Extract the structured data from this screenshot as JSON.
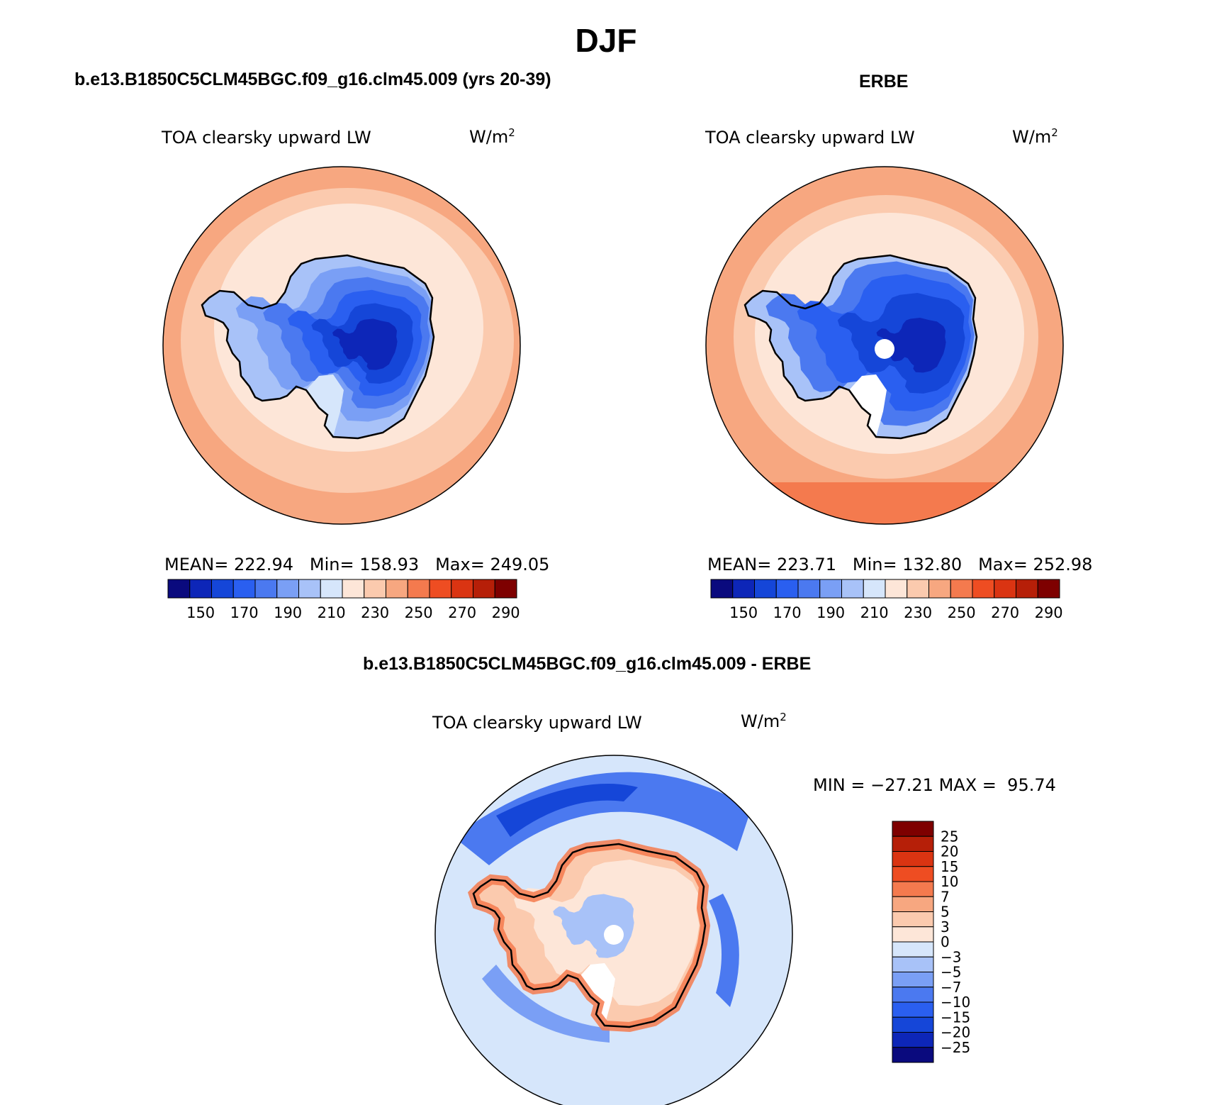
{
  "figure": {
    "title": "DJF"
  },
  "panels": {
    "model": {
      "title": "b.e13.B1850C5CLM45BGC.f09_g16.clm45.009 (yrs 20-39)",
      "variable": "TOA clearsky upward LW",
      "units_base": "W/m",
      "units_exp": "2",
      "stats": {
        "mean_label": "MEAN=",
        "mean": "222.94",
        "min_label": "Min=",
        "min": "158.93",
        "max_label": "Max=",
        "max": "249.05"
      }
    },
    "obs": {
      "title": "ERBE",
      "variable": "TOA clearsky upward LW",
      "units_base": "W/m",
      "units_exp": "2",
      "stats": {
        "mean_label": "MEAN=",
        "mean": "223.71",
        "min_label": "Min=",
        "min": "132.80",
        "max_label": "Max=",
        "max": "252.98"
      }
    },
    "diff": {
      "title": "b.e13.B1850C5CLM45BGC.f09_g16.clm45.009 - ERBE",
      "variable": "TOA clearsky upward LW",
      "units_base": "W/m",
      "units_exp": "2",
      "stats": {
        "min_label": "MIN =",
        "min": "−27.21",
        "max_label": "MAX =",
        "max": "95.74"
      }
    }
  },
  "colorbars": {
    "absolute": {
      "ticks": [
        "150",
        "170",
        "190",
        "210",
        "230",
        "250",
        "270",
        "290"
      ],
      "colors": [
        "#0a0a7e",
        "#0d26b8",
        "#1546d8",
        "#2a5ff0",
        "#4b79f0",
        "#7a9ff5",
        "#a8c2f8",
        "#d6e6fb",
        "#fde6d8",
        "#fbcaae",
        "#f7a780",
        "#f47a4e",
        "#ee4d22",
        "#da3412",
        "#b61f08",
        "#7e0000"
      ]
    },
    "difference": {
      "ticks": [
        "25",
        "20",
        "15",
        "10",
        "7",
        "5",
        "3",
        "0",
        "−3",
        "−5",
        "−7",
        "−10",
        "−15",
        "−20",
        "−25"
      ],
      "colors": [
        "#7e0000",
        "#b61f08",
        "#da3412",
        "#ee4d22",
        "#f47a4e",
        "#f7a780",
        "#fbcaae",
        "#fde6d8",
        "#d6e6fb",
        "#a8c2f8",
        "#7a9ff5",
        "#4b79f0",
        "#2a5ff0",
        "#1546d8",
        "#0d26b8",
        "#0a0a7e"
      ]
    }
  }
}
